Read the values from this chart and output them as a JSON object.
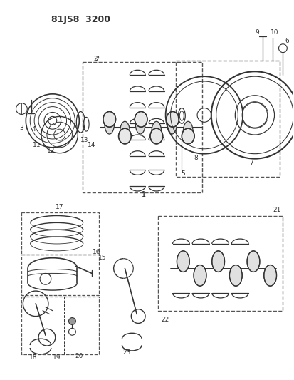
{
  "title_code": "81J58 3200",
  "bg_color": "#ffffff",
  "line_color": "#333333",
  "dashed_color": "#555555",
  "fig_width": 4.14,
  "fig_height": 5.33,
  "dpi": 100
}
